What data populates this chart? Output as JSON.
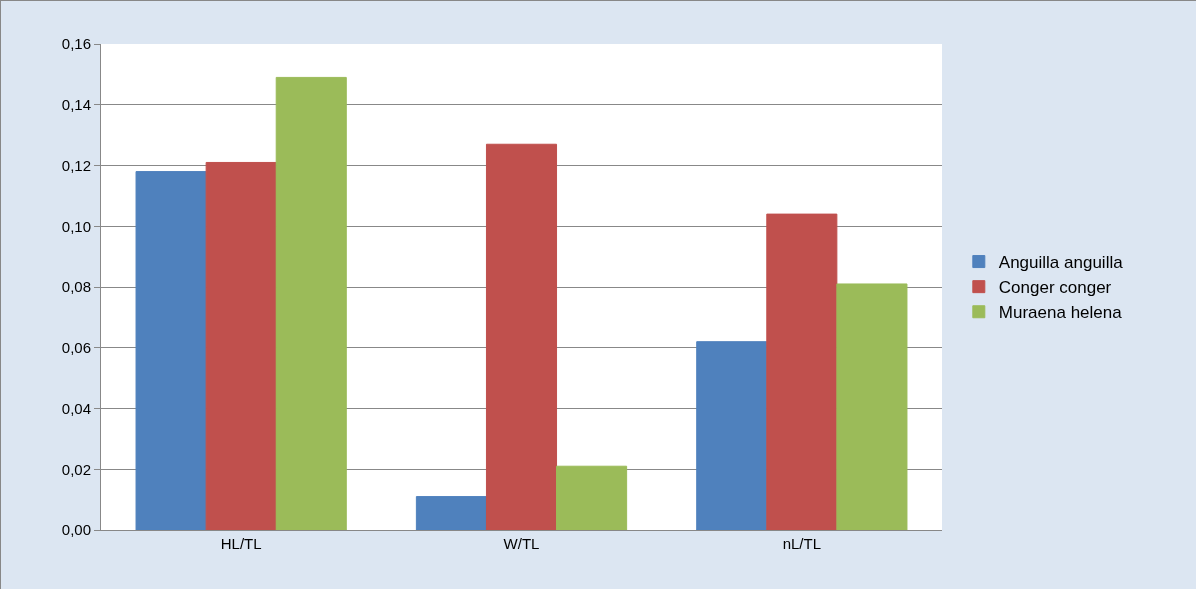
{
  "chart_data": {
    "type": "bar",
    "categories": [
      "HL/TL",
      "W/TL",
      "nL/TL"
    ],
    "series": [
      {
        "name": "Anguilla anguilla",
        "color": "#4f81bd",
        "values": [
          0.118,
          0.011,
          0.062
        ]
      },
      {
        "name": "Conger conger",
        "color": "#c0504d",
        "values": [
          0.121,
          0.127,
          0.104
        ]
      },
      {
        "name": "Muraena helena",
        "color": "#9bbb59",
        "values": [
          0.149,
          0.021,
          0.081
        ]
      }
    ],
    "ylim": [
      0,
      0.16
    ],
    "yticks": [
      {
        "value": 0,
        "label": "0,00"
      },
      {
        "value": 0.02,
        "label": "0,02"
      },
      {
        "value": 0.04,
        "label": "0,04"
      },
      {
        "value": 0.06,
        "label": "0,06"
      },
      {
        "value": 0.08,
        "label": "0,08"
      },
      {
        "value": 0.1,
        "label": "0,10"
      },
      {
        "value": 0.12,
        "label": "0,12"
      },
      {
        "value": 0.14,
        "label": "0,14"
      },
      {
        "value": 0.16,
        "label": "0,16"
      }
    ],
    "grid": "y",
    "legend": "right"
  }
}
